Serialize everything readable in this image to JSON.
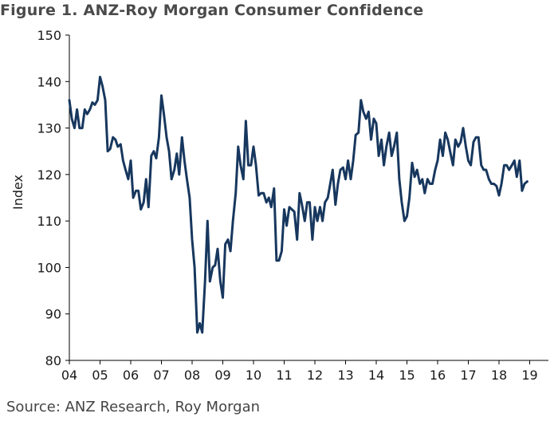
{
  "chart_data": {
    "type": "line",
    "title": "Figure 1. ANZ-Roy Morgan Consumer Confidence",
    "ylabel": "Index",
    "xlabel": "",
    "ylim": [
      80,
      150
    ],
    "yticks": [
      80,
      90,
      100,
      110,
      120,
      130,
      140,
      150
    ],
    "xlim": [
      2004.0,
      2019.75
    ],
    "xticks": [
      {
        "value": 2004,
        "label": "04"
      },
      {
        "value": 2005,
        "label": "05"
      },
      {
        "value": 2006,
        "label": "06"
      },
      {
        "value": 2007,
        "label": "07"
      },
      {
        "value": 2008,
        "label": "08"
      },
      {
        "value": 2009,
        "label": "09"
      },
      {
        "value": 2010,
        "label": "10"
      },
      {
        "value": 2011,
        "label": "11"
      },
      {
        "value": 2012,
        "label": "12"
      },
      {
        "value": 2013,
        "label": "13"
      },
      {
        "value": 2014,
        "label": "14"
      },
      {
        "value": 2015,
        "label": "15"
      },
      {
        "value": 2016,
        "label": "16"
      },
      {
        "value": 2017,
        "label": "17"
      },
      {
        "value": 2018,
        "label": "18"
      },
      {
        "value": 2019,
        "label": "19"
      }
    ],
    "grid": false,
    "series": [
      {
        "color": "#17375e",
        "points": [
          [
            2004.0,
            136
          ],
          [
            2004.08,
            132
          ],
          [
            2004.17,
            130
          ],
          [
            2004.25,
            134
          ],
          [
            2004.33,
            130
          ],
          [
            2004.42,
            130
          ],
          [
            2004.5,
            134
          ],
          [
            2004.58,
            133
          ],
          [
            2004.67,
            134
          ],
          [
            2004.75,
            135.5
          ],
          [
            2004.83,
            135
          ],
          [
            2004.92,
            136
          ],
          [
            2005.0,
            141
          ],
          [
            2005.08,
            139
          ],
          [
            2005.17,
            136
          ],
          [
            2005.25,
            125
          ],
          [
            2005.33,
            125.5
          ],
          [
            2005.42,
            128
          ],
          [
            2005.5,
            127.5
          ],
          [
            2005.58,
            126
          ],
          [
            2005.67,
            126.5
          ],
          [
            2005.75,
            123
          ],
          [
            2005.83,
            121
          ],
          [
            2005.92,
            119
          ],
          [
            2006.0,
            123
          ],
          [
            2006.08,
            115
          ],
          [
            2006.17,
            116.5
          ],
          [
            2006.25,
            116.5
          ],
          [
            2006.33,
            112.5
          ],
          [
            2006.42,
            114
          ],
          [
            2006.5,
            119
          ],
          [
            2006.58,
            113
          ],
          [
            2006.67,
            124
          ],
          [
            2006.75,
            125
          ],
          [
            2006.83,
            123.5
          ],
          [
            2006.92,
            128
          ],
          [
            2007.0,
            137
          ],
          [
            2007.08,
            133
          ],
          [
            2007.17,
            128
          ],
          [
            2007.25,
            125
          ],
          [
            2007.33,
            119
          ],
          [
            2007.42,
            121
          ],
          [
            2007.5,
            124.5
          ],
          [
            2007.58,
            120
          ],
          [
            2007.67,
            128
          ],
          [
            2007.75,
            123
          ],
          [
            2007.83,
            119
          ],
          [
            2007.92,
            115
          ],
          [
            2008.0,
            106
          ],
          [
            2008.08,
            100
          ],
          [
            2008.17,
            86
          ],
          [
            2008.25,
            88
          ],
          [
            2008.33,
            86
          ],
          [
            2008.42,
            97
          ],
          [
            2008.5,
            110
          ],
          [
            2008.58,
            97
          ],
          [
            2008.67,
            100
          ],
          [
            2008.75,
            100.5
          ],
          [
            2008.83,
            104
          ],
          [
            2008.92,
            97
          ],
          [
            2009.0,
            93.5
          ],
          [
            2009.08,
            105
          ],
          [
            2009.17,
            106
          ],
          [
            2009.25,
            103.5
          ],
          [
            2009.33,
            110
          ],
          [
            2009.42,
            116
          ],
          [
            2009.5,
            126
          ],
          [
            2009.58,
            122
          ],
          [
            2009.67,
            119
          ],
          [
            2009.75,
            131.5
          ],
          [
            2009.83,
            122
          ],
          [
            2009.92,
            122
          ],
          [
            2010.0,
            126
          ],
          [
            2010.08,
            122
          ],
          [
            2010.17,
            115.5
          ],
          [
            2010.25,
            116
          ],
          [
            2010.33,
            116
          ],
          [
            2010.42,
            114
          ],
          [
            2010.5,
            115
          ],
          [
            2010.58,
            113
          ],
          [
            2010.67,
            117
          ],
          [
            2010.75,
            101.5
          ],
          [
            2010.83,
            101.5
          ],
          [
            2010.92,
            103.5
          ],
          [
            2011.0,
            112.5
          ],
          [
            2011.08,
            109
          ],
          [
            2011.17,
            113
          ],
          [
            2011.25,
            112.5
          ],
          [
            2011.33,
            112
          ],
          [
            2011.42,
            106
          ],
          [
            2011.5,
            116
          ],
          [
            2011.58,
            113.5
          ],
          [
            2011.67,
            110
          ],
          [
            2011.75,
            114
          ],
          [
            2011.83,
            114
          ],
          [
            2011.92,
            106
          ],
          [
            2012.0,
            113
          ],
          [
            2012.08,
            110
          ],
          [
            2012.17,
            113
          ],
          [
            2012.25,
            110
          ],
          [
            2012.33,
            114
          ],
          [
            2012.42,
            115
          ],
          [
            2012.5,
            118
          ],
          [
            2012.58,
            121
          ],
          [
            2012.67,
            113.5
          ],
          [
            2012.75,
            118
          ],
          [
            2012.83,
            121
          ],
          [
            2012.92,
            121.5
          ],
          [
            2013.0,
            119
          ],
          [
            2013.08,
            123
          ],
          [
            2013.17,
            119
          ],
          [
            2013.25,
            123
          ],
          [
            2013.33,
            128.5
          ],
          [
            2013.42,
            129
          ],
          [
            2013.5,
            136
          ],
          [
            2013.58,
            133.5
          ],
          [
            2013.67,
            132
          ],
          [
            2013.75,
            133.5
          ],
          [
            2013.83,
            127.5
          ],
          [
            2013.92,
            132
          ],
          [
            2014.0,
            131
          ],
          [
            2014.08,
            124
          ],
          [
            2014.17,
            127.5
          ],
          [
            2014.25,
            122
          ],
          [
            2014.33,
            126
          ],
          [
            2014.42,
            129
          ],
          [
            2014.5,
            124
          ],
          [
            2014.58,
            126
          ],
          [
            2014.67,
            129
          ],
          [
            2014.75,
            119
          ],
          [
            2014.83,
            114
          ],
          [
            2014.92,
            110
          ],
          [
            2015.0,
            111
          ],
          [
            2015.08,
            115
          ],
          [
            2015.17,
            122.5
          ],
          [
            2015.25,
            119.5
          ],
          [
            2015.33,
            121
          ],
          [
            2015.42,
            118
          ],
          [
            2015.5,
            119
          ],
          [
            2015.58,
            116
          ],
          [
            2015.67,
            119
          ],
          [
            2015.75,
            118
          ],
          [
            2015.83,
            118
          ],
          [
            2015.92,
            121
          ],
          [
            2016.0,
            123
          ],
          [
            2016.08,
            127.5
          ],
          [
            2016.17,
            124
          ],
          [
            2016.25,
            129
          ],
          [
            2016.33,
            127.5
          ],
          [
            2016.42,
            124.5
          ],
          [
            2016.5,
            122
          ],
          [
            2016.58,
            127.5
          ],
          [
            2016.67,
            126
          ],
          [
            2016.75,
            127
          ],
          [
            2016.83,
            130
          ],
          [
            2016.92,
            126
          ],
          [
            2017.0,
            123
          ],
          [
            2017.08,
            122
          ],
          [
            2017.17,
            127
          ],
          [
            2017.25,
            128
          ],
          [
            2017.33,
            128
          ],
          [
            2017.42,
            122
          ],
          [
            2017.5,
            121
          ],
          [
            2017.58,
            121
          ],
          [
            2017.67,
            119
          ],
          [
            2017.75,
            118
          ],
          [
            2017.83,
            118
          ],
          [
            2017.92,
            117.5
          ],
          [
            2018.0,
            115.5
          ],
          [
            2018.08,
            118
          ],
          [
            2018.17,
            122
          ],
          [
            2018.25,
            122
          ],
          [
            2018.33,
            121
          ],
          [
            2018.42,
            122
          ],
          [
            2018.5,
            123
          ],
          [
            2018.58,
            119.5
          ],
          [
            2018.67,
            123
          ],
          [
            2018.75,
            116.5
          ],
          [
            2018.83,
            118
          ],
          [
            2018.92,
            118.5
          ]
        ]
      }
    ]
  },
  "source": "Source: ANZ Research, Roy Morgan"
}
